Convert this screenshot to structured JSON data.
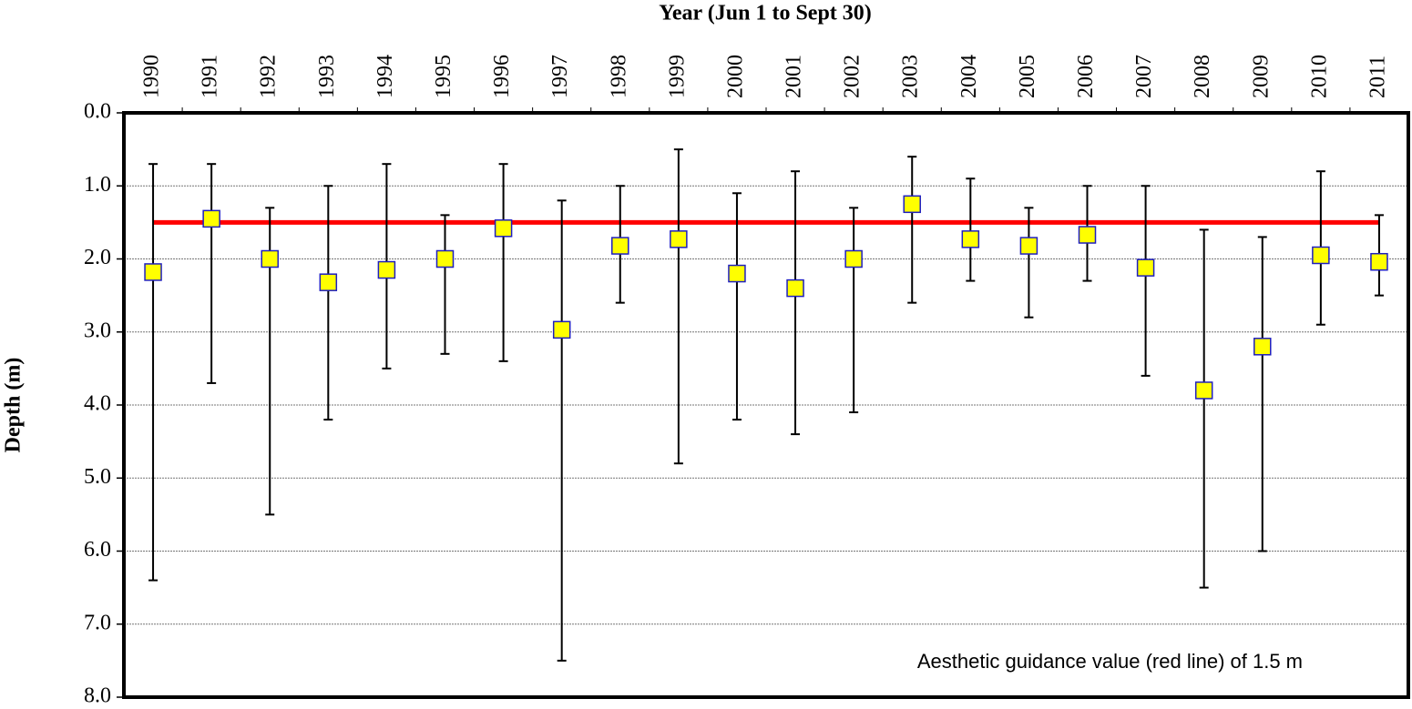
{
  "chart_data": {
    "type": "errorbar",
    "x_label": "Year (Jun 1 to Sept 30)",
    "y_label": "Depth (m)",
    "annotation": "Aesthetic guidance value (red line) of 1.5 m",
    "categories": [
      "1990",
      "1991",
      "1992",
      "1993",
      "1994",
      "1995",
      "1996",
      "1997",
      "1998",
      "1999",
      "2000",
      "2001",
      "2002",
      "2003",
      "2004",
      "2005",
      "2006",
      "2007",
      "2008",
      "2009",
      "2010",
      "2011"
    ],
    "mean": [
      2.18,
      1.45,
      2.0,
      2.32,
      2.15,
      2.0,
      1.58,
      2.97,
      1.82,
      1.73,
      2.2,
      2.4,
      2.0,
      1.25,
      1.73,
      1.82,
      1.67,
      2.12,
      3.8,
      3.2,
      1.95,
      2.04
    ],
    "min": [
      0.7,
      0.7,
      1.3,
      1.0,
      0.7,
      1.4,
      0.7,
      1.2,
      1.0,
      0.5,
      1.1,
      0.8,
      1.3,
      0.6,
      0.9,
      1.3,
      1.0,
      1.0,
      1.6,
      1.7,
      0.8,
      1.4
    ],
    "max": [
      6.4,
      3.7,
      5.5,
      4.2,
      3.5,
      3.3,
      3.4,
      7.5,
      2.6,
      4.8,
      4.2,
      4.4,
      4.1,
      2.6,
      2.3,
      2.8,
      2.3,
      3.6,
      6.5,
      6.0,
      2.9,
      2.5
    ],
    "marker_color": "#ffff00",
    "marker_edge_color": "#1f1fbf",
    "guidance_value": 1.5,
    "guidance_color": "#ff0000",
    "ylim": [
      0,
      8
    ],
    "y_inverted": true,
    "yticks": [
      {
        "value": 0,
        "label": "0.0"
      },
      {
        "value": 1,
        "label": "1.0"
      },
      {
        "value": 2,
        "label": "2.0"
      },
      {
        "value": 3,
        "label": "3.0"
      },
      {
        "value": 4,
        "label": "4.0"
      },
      {
        "value": 5,
        "label": "5.0"
      },
      {
        "value": 6,
        "label": "6.0"
      },
      {
        "value": 7,
        "label": "7.0"
      },
      {
        "value": 8,
        "label": "8.0"
      }
    ],
    "grid": true
  }
}
